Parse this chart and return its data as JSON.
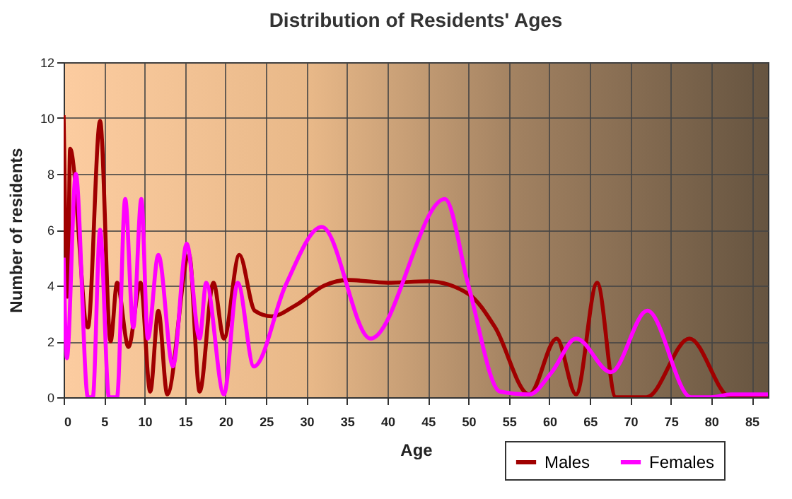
{
  "chart_data": {
    "type": "line",
    "title": "Distribution of Residents' Ages",
    "xlabel": "Age",
    "ylabel": "Number of residents",
    "xlim": [
      0,
      87
    ],
    "xticks": [
      0,
      5,
      10,
      15,
      20,
      25,
      30,
      35,
      40,
      45,
      50,
      55,
      60,
      65,
      70,
      75,
      80,
      85
    ],
    "ylim": [
      0,
      12
    ],
    "yticks": [
      0,
      2,
      4,
      6,
      8,
      10,
      12
    ],
    "grid": true,
    "legend": "bottom right",
    "series": [
      {
        "name": "Males",
        "color": "#a00000",
        "x": [
          0,
          0.5,
          0.8,
          3,
          4.5,
          5.8,
          6.6,
          8,
          9.5,
          10.7,
          11.7,
          12.8,
          15.5,
          16.8,
          18.5,
          19.8,
          21.7,
          23.6,
          25.7,
          28.7,
          32.2,
          35.1,
          40,
          45,
          50,
          53.3,
          57.5,
          60.9,
          63.3,
          65.9,
          68.2,
          72,
          77.3,
          82.4,
          87
        ],
        "values": [
          10.1,
          3.6,
          8.9,
          2.5,
          9.9,
          2,
          4.1,
          1.8,
          4.1,
          0.2,
          3.1,
          0.1,
          5.1,
          0.2,
          4.1,
          2.1,
          5.1,
          3.1,
          2.9,
          3.3,
          4,
          4.2,
          4.1,
          4.15,
          3.7,
          2.5,
          0.1,
          2.1,
          0.1,
          4.1,
          0,
          0,
          2.1,
          0,
          0
        ]
      },
      {
        "name": "Females",
        "color": "#ff00ff",
        "x": [
          0,
          0.4,
          1.5,
          3,
          3.6,
          4.5,
          5.6,
          6.6,
          7.6,
          8.6,
          9.6,
          10.4,
          11.7,
          13.5,
          15.2,
          16.8,
          17.6,
          19.8,
          21.5,
          23.5,
          27.4,
          31.9,
          37.9,
          47.1,
          50,
          53.9,
          57.5,
          60.3,
          63.3,
          67.6,
          72.1,
          77.5,
          80,
          82.4,
          87
        ],
        "values": [
          5,
          1.4,
          8,
          0,
          0,
          6,
          0,
          0,
          7.1,
          2.5,
          7.1,
          2.1,
          5.1,
          1.1,
          5.5,
          2.1,
          4.1,
          0.1,
          4.1,
          1.1,
          4,
          6.1,
          2.1,
          7.1,
          4,
          0.2,
          0.1,
          0.9,
          2.1,
          0.9,
          3.1,
          0,
          0,
          0.1,
          0.1
        ]
      }
    ]
  }
}
